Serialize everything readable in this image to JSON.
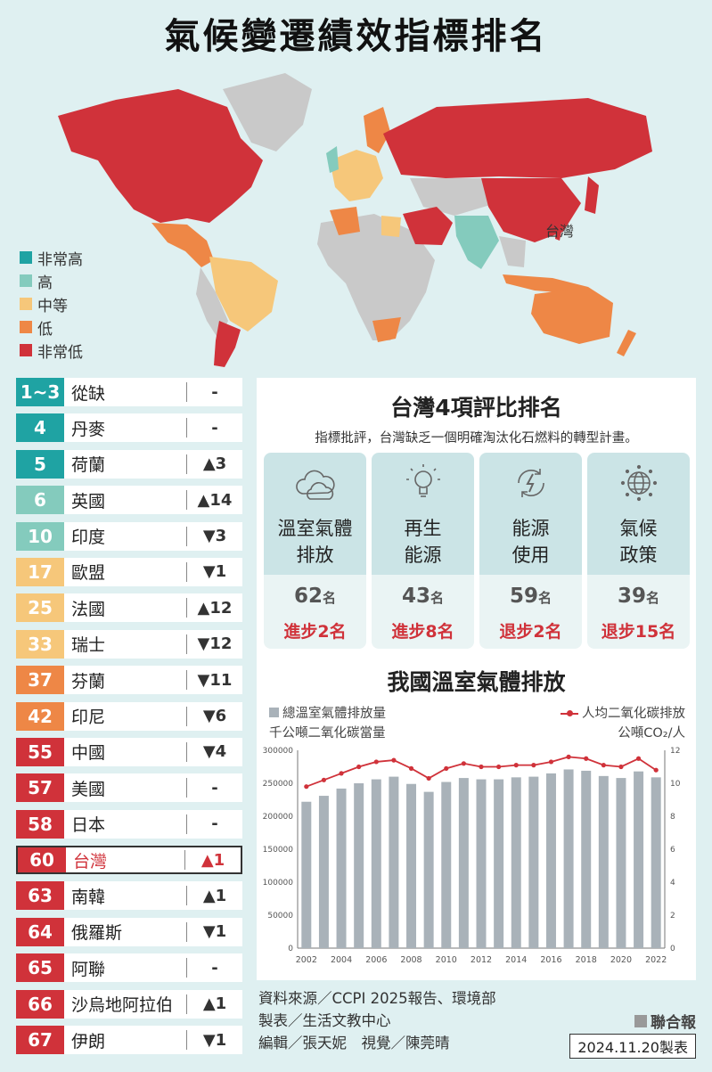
{
  "title": "氣候變遷績效指標排名",
  "map": {
    "taiwan_label": "台灣"
  },
  "legend": [
    {
      "label": "非常高",
      "color": "#1fa3a3"
    },
    {
      "label": "高",
      "color": "#84cbbd"
    },
    {
      "label": "中等",
      "color": "#f6c77a"
    },
    {
      "label": "低",
      "color": "#ee8746"
    },
    {
      "label": "非常低",
      "color": "#d0323a"
    }
  ],
  "colors": {
    "very_high": "#1fa3a3",
    "high": "#84cbbd",
    "medium": "#f6c77a",
    "low": "#ee8746",
    "very_low": "#d0323a",
    "no_data": "#c9c9c9",
    "bar": "#a9b2b9",
    "line": "#d0323a"
  },
  "rankings": [
    {
      "rank": "1~3",
      "country": "從缺",
      "change": "-",
      "level": "very_high"
    },
    {
      "rank": "4",
      "country": "丹麥",
      "change": "-",
      "level": "very_high"
    },
    {
      "rank": "5",
      "country": "荷蘭",
      "change": "▲3",
      "level": "very_high"
    },
    {
      "rank": "6",
      "country": "英國",
      "change": "▲14",
      "level": "high"
    },
    {
      "rank": "10",
      "country": "印度",
      "change": "▼3",
      "level": "high"
    },
    {
      "rank": "17",
      "country": "歐盟",
      "change": "▼1",
      "level": "medium"
    },
    {
      "rank": "25",
      "country": "法國",
      "change": "▲12",
      "level": "medium"
    },
    {
      "rank": "33",
      "country": "瑞士",
      "change": "▼12",
      "level": "medium"
    },
    {
      "rank": "37",
      "country": "芬蘭",
      "change": "▼11",
      "level": "low"
    },
    {
      "rank": "42",
      "country": "印尼",
      "change": "▼6",
      "level": "low"
    },
    {
      "rank": "55",
      "country": "中國",
      "change": "▼4",
      "level": "very_low"
    },
    {
      "rank": "57",
      "country": "美國",
      "change": "-",
      "level": "very_low"
    },
    {
      "rank": "58",
      "country": "日本",
      "change": "-",
      "level": "very_low"
    },
    {
      "rank": "60",
      "country": "台灣",
      "change": "▲1",
      "level": "very_low",
      "highlight": true
    },
    {
      "rank": "63",
      "country": "南韓",
      "change": "▲1",
      "level": "very_low"
    },
    {
      "rank": "64",
      "country": "俄羅斯",
      "change": "▼1",
      "level": "very_low"
    },
    {
      "rank": "65",
      "country": "阿聯",
      "change": "-",
      "level": "very_low"
    },
    {
      "rank": "66",
      "country": "沙烏地阿拉伯",
      "change": "▲1",
      "level": "very_low"
    },
    {
      "rank": "67",
      "country": "伊朗",
      "change": "▼1",
      "level": "very_low"
    }
  ],
  "panel": {
    "title": "台灣4項評比排名",
    "subtitle": "指標批評，台灣缺乏一個明確淘汰化石燃料的轉型計畫。",
    "cards": [
      {
        "line1": "溫室氣體",
        "line2": "排放",
        "rank": "62",
        "rank_unit": "名",
        "change": "進步2名",
        "icon": "cloud-icon"
      },
      {
        "line1": "再生",
        "line2": "能源",
        "rank": "43",
        "rank_unit": "名",
        "change": "進步8名",
        "icon": "lightbulb-icon"
      },
      {
        "line1": "能源",
        "line2": "使用",
        "rank": "59",
        "rank_unit": "名",
        "change": "退步2名",
        "icon": "energy-cycle-icon"
      },
      {
        "line1": "氣候",
        "line2": "政策",
        "rank": "39",
        "rank_unit": "名",
        "change": "退步15名",
        "icon": "globe-icon"
      }
    ]
  },
  "chart_legend": {
    "bar_label": "總溫室氣體排放量",
    "bar_unit": "千公噸二氧化碳當量",
    "line_label": "人均二氧化碳排放",
    "line_unit": "公噸CO₂/人"
  },
  "chart_data": {
    "type": "bar",
    "title": "我國溫室氣體排放",
    "x": [
      2002,
      2003,
      2004,
      2005,
      2006,
      2007,
      2008,
      2009,
      2010,
      2011,
      2012,
      2013,
      2014,
      2015,
      2016,
      2017,
      2018,
      2019,
      2020,
      2021,
      2022
    ],
    "x_tick_labels": [
      "2002",
      "2004",
      "2006",
      "2008",
      "2010",
      "2012",
      "2014",
      "2016",
      "2018",
      "2020",
      "2022"
    ],
    "series": [
      {
        "name": "總溫室氣體排放量",
        "type": "bar",
        "axis": "left",
        "values": [
          222000,
          231000,
          242000,
          250000,
          256000,
          260000,
          249000,
          237000,
          252000,
          258000,
          256000,
          256000,
          259000,
          260000,
          265000,
          271000,
          269000,
          261000,
          258000,
          268000,
          259000
        ]
      },
      {
        "name": "人均二氧化碳排放",
        "type": "line",
        "axis": "right",
        "values": [
          9.8,
          10.2,
          10.6,
          11.0,
          11.3,
          11.4,
          10.9,
          10.3,
          10.9,
          11.2,
          11.0,
          11.0,
          11.1,
          11.1,
          11.3,
          11.6,
          11.5,
          11.1,
          11.0,
          11.5,
          10.8
        ]
      }
    ],
    "ylim_left": [
      0,
      300000
    ],
    "yticks_left": [
      0,
      50000,
      100000,
      150000,
      200000,
      250000,
      300000
    ],
    "ylim_right": [
      0,
      12
    ],
    "yticks_right": [
      0,
      2,
      4,
      6,
      8,
      10,
      12
    ]
  },
  "footer": {
    "source": "資料來源／CCPI 2025報告、環境部",
    "producer": "製表／生活文教中心",
    "editor": "編輯／張天妮　視覺／陳莞晴",
    "publisher": "聯合報",
    "date": "2024.11.20製表"
  }
}
